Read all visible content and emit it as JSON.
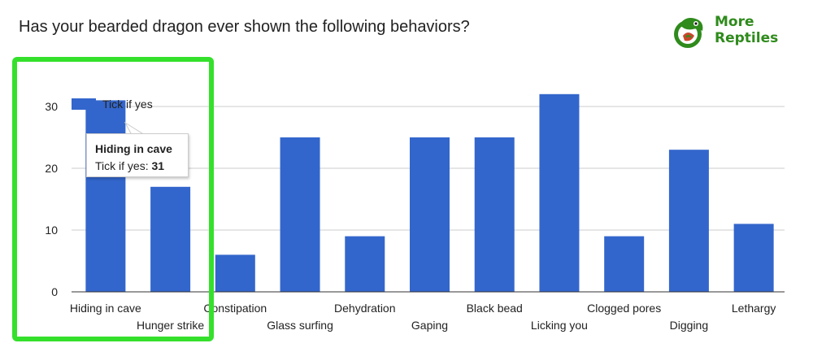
{
  "chart_data": {
    "type": "bar",
    "title": "Has your bearded dragon ever shown the following behaviors?",
    "categories": [
      "Hiding in cave",
      "Hunger strike",
      "Constipation",
      "Glass surfing",
      "Dehydration",
      "Gaping",
      "Black bead",
      "Licking you",
      "Clogged pores",
      "Digging",
      "Lethargy"
    ],
    "series": [
      {
        "name": "Tick if yes",
        "values": [
          31,
          17,
          6,
          25,
          9,
          25,
          25,
          32,
          9,
          23,
          11
        ]
      }
    ],
    "ylim": [
      0,
      35
    ],
    "yticks": [
      0,
      10,
      20,
      30
    ],
    "xlabel": "",
    "ylabel": "",
    "grid": true,
    "legend_position": "top-left",
    "bar_color": "#3366cc"
  },
  "tooltip": {
    "title": "Hiding in cave",
    "series_label": "Tick if yes:",
    "value": "31"
  },
  "logo": {
    "line1": "More",
    "line2": "Reptiles",
    "color": "#2f8b1c"
  },
  "highlight_color": "#35e02c"
}
